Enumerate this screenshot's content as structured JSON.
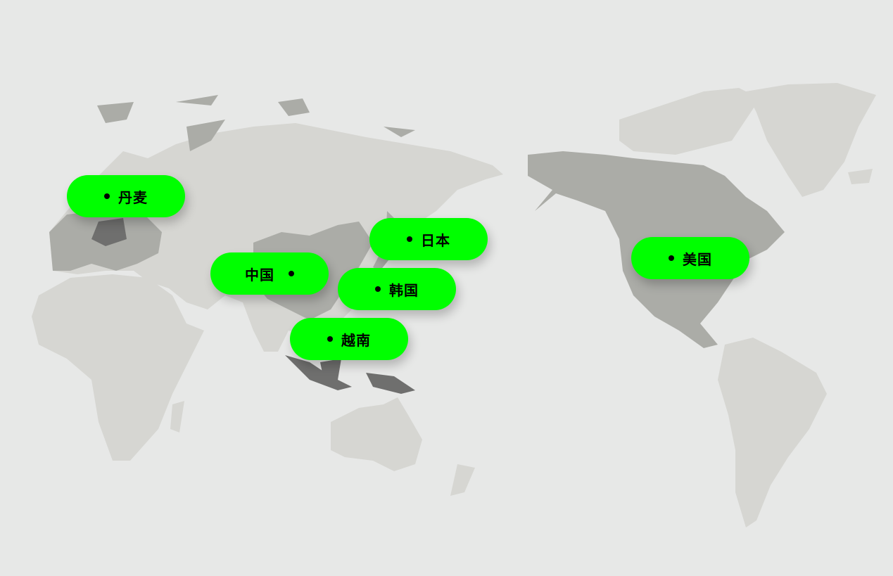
{
  "colors": {
    "background": "#e7e8e7",
    "land_light": "#d6d6d2",
    "land_mid": "#abaca7",
    "land_highlight": "#6f6f6e",
    "pill": "#00ff00"
  },
  "markers": [
    {
      "id": "denmark",
      "label": "丹麦",
      "dot_position": "before"
    },
    {
      "id": "japan",
      "label": "日本",
      "dot_position": "before"
    },
    {
      "id": "china",
      "label": "中国",
      "dot_position": "after"
    },
    {
      "id": "korea",
      "label": "韩国",
      "dot_position": "before"
    },
    {
      "id": "vietnam",
      "label": "越南",
      "dot_position": "before"
    },
    {
      "id": "usa",
      "label": "美国",
      "dot_position": "before"
    }
  ]
}
